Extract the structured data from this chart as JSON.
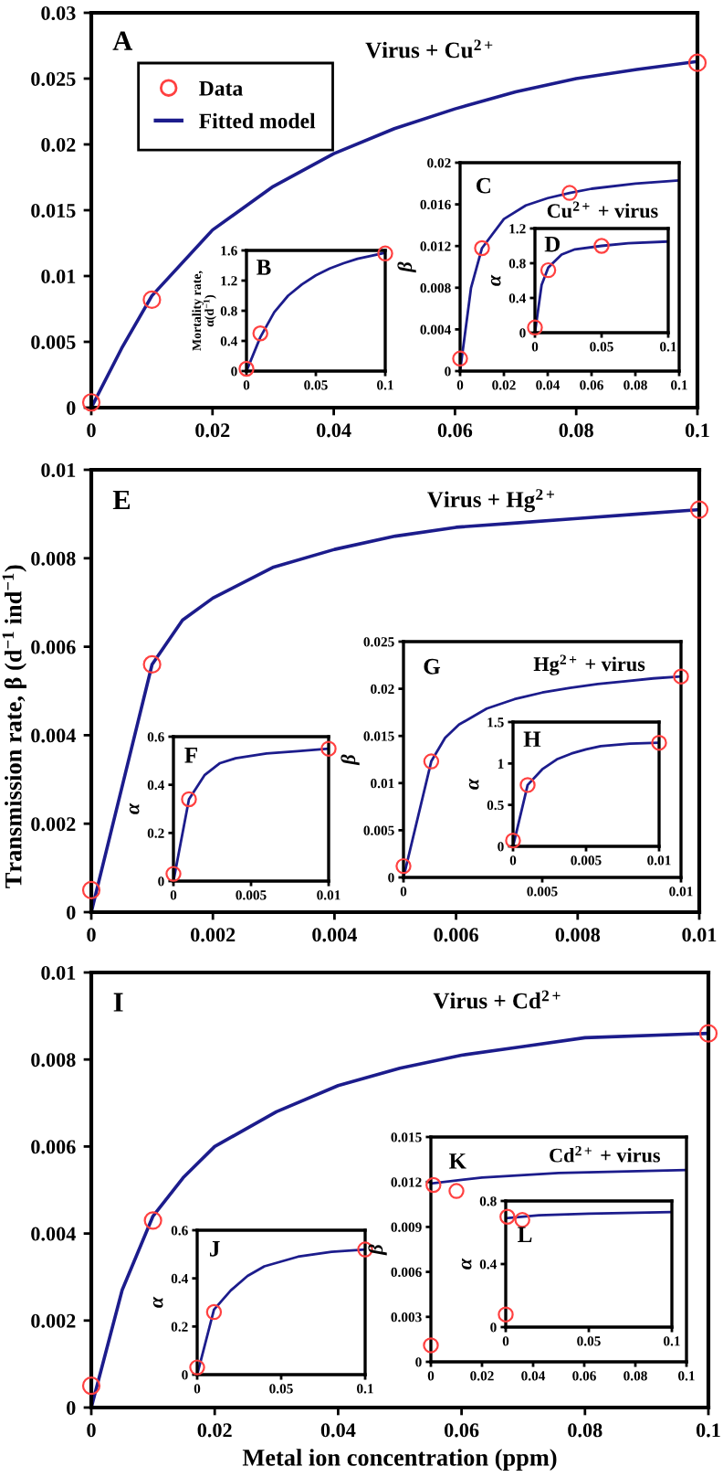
{
  "chart_data": [
    {
      "type": "line",
      "title": "A",
      "annotations": [
        "Virus + Cu$^{2+}$"
      ],
      "xlim": [
        0,
        0.1
      ],
      "ylim": [
        0,
        0.03
      ],
      "xticks": [
        0,
        0.02,
        0.04,
        0.06,
        0.08,
        0.1
      ],
      "yticks": [
        0,
        0.005,
        0.01,
        0.015,
        0.02,
        0.025,
        0.03
      ],
      "legend": "top left",
      "series": [
        {
          "type": "scatter",
          "name": "Data",
          "color": "#ff4040",
          "marker": "circle",
          "x": [
            0,
            0.01,
            0.1
          ],
          "values": [
            0.0004,
            0.0082,
            0.0262
          ]
        },
        {
          "name": "Fitted model",
          "color": "#1c1c8c",
          "x": [
            0,
            0.005,
            0.01,
            0.02,
            0.03,
            0.04,
            0.05,
            0.06,
            0.07,
            0.08,
            0.09,
            0.1
          ],
          "values": [
            0,
            0.0045,
            0.0085,
            0.0135,
            0.0168,
            0.0193,
            0.0212,
            0.0227,
            0.024,
            0.025,
            0.0257,
            0.0263
          ]
        }
      ]
    },
    {
      "type": "line",
      "title": "B",
      "ylabel": "Mortality rate,\nα(d$^{−1}$)",
      "xlim": [
        0,
        0.1
      ],
      "ylim": [
        0,
        1.6
      ],
      "xticks": [
        0,
        0.05,
        0.1
      ],
      "yticks": [
        0,
        0.4,
        0.8,
        1.2,
        1.6
      ],
      "series": [
        {
          "type": "scatter",
          "color": "#ff4040",
          "marker": "circle",
          "x": [
            0,
            0.01,
            0.1
          ],
          "values": [
            0.03,
            0.5,
            1.56
          ]
        },
        {
          "type": "line",
          "color": "#1c1c8c",
          "x": [
            0,
            0.01,
            0.02,
            0.03,
            0.04,
            0.05,
            0.06,
            0.07,
            0.08,
            0.09,
            0.1
          ],
          "values": [
            0,
            0.45,
            0.78,
            1.0,
            1.15,
            1.27,
            1.36,
            1.43,
            1.49,
            1.53,
            1.57
          ]
        }
      ]
    },
    {
      "type": "line",
      "title": "C",
      "ylabel": "β",
      "annotations": [
        "Cu$^{2+}$ + virus"
      ],
      "xlim": [
        0,
        0.1
      ],
      "ylim": [
        0,
        0.02
      ],
      "xticks": [
        0,
        0.02,
        0.04,
        0.06,
        0.08,
        0.1
      ],
      "yticks": [
        0,
        0.004,
        0.008,
        0.012,
        0.016,
        0.02
      ],
      "series": [
        {
          "type": "scatter",
          "color": "#ff4040",
          "marker": "circle",
          "x": [
            0,
            0.01,
            0.05
          ],
          "values": [
            0.0012,
            0.0118,
            0.0171
          ]
        },
        {
          "type": "line",
          "color": "#1c1c8c",
          "x": [
            0,
            0.005,
            0.01,
            0.02,
            0.03,
            0.04,
            0.05,
            0.06,
            0.08,
            0.1
          ],
          "values": [
            0,
            0.008,
            0.0118,
            0.0146,
            0.0159,
            0.0166,
            0.0171,
            0.0175,
            0.018,
            0.0183
          ]
        }
      ]
    },
    {
      "type": "line",
      "title": "D",
      "ylabel": "α",
      "xlim": [
        0,
        0.1
      ],
      "ylim": [
        0,
        1.2
      ],
      "xticks": [
        0,
        0.05,
        0.1
      ],
      "yticks": [
        0,
        0.4,
        0.8,
        1.2
      ],
      "series": [
        {
          "type": "scatter",
          "color": "#ff4040",
          "marker": "circle",
          "x": [
            0,
            0.01,
            0.05
          ],
          "values": [
            0.06,
            0.72,
            1.0
          ]
        },
        {
          "type": "line",
          "color": "#1c1c8c",
          "x": [
            0,
            0.005,
            0.01,
            0.02,
            0.03,
            0.05,
            0.07,
            0.1
          ],
          "values": [
            0,
            0.55,
            0.75,
            0.9,
            0.96,
            1.0,
            1.03,
            1.05
          ]
        }
      ]
    },
    {
      "type": "line",
      "title": "E",
      "ylabel": "Transmission rate, β (d$^{−1}$ ind$^{−1}$)",
      "annotations": [
        "Virus + Hg$^{2+}$"
      ],
      "xlim": [
        0,
        0.01
      ],
      "ylim": [
        0,
        0.01
      ],
      "xticks": [
        0,
        0.002,
        0.004,
        0.006,
        0.008,
        0.01
      ],
      "yticks": [
        0,
        0.002,
        0.004,
        0.006,
        0.008,
        0.01
      ],
      "series": [
        {
          "type": "scatter",
          "color": "#ff4040",
          "marker": "circle",
          "x": [
            0,
            0.001,
            0.01
          ],
          "values": [
            0.0005,
            0.0056,
            0.0091
          ]
        },
        {
          "type": "line",
          "color": "#1c1c8c",
          "x": [
            0,
            0.001,
            0.0015,
            0.002,
            0.003,
            0.004,
            0.005,
            0.006,
            0.007,
            0.008,
            0.009,
            0.01
          ],
          "values": [
            0,
            0.0056,
            0.0066,
            0.0071,
            0.0078,
            0.0082,
            0.0085,
            0.0087,
            0.0088,
            0.0089,
            0.009,
            0.0091
          ]
        }
      ]
    },
    {
      "type": "line",
      "title": "F",
      "ylabel": "α",
      "xlim": [
        0,
        0.01
      ],
      "ylim": [
        0,
        0.6
      ],
      "xticks": [
        0,
        0.005,
        0.01
      ],
      "yticks": [
        0,
        0.2,
        0.4,
        0.6
      ],
      "series": [
        {
          "type": "scatter",
          "color": "#ff4040",
          "marker": "circle",
          "x": [
            0,
            0.001,
            0.01
          ],
          "values": [
            0.03,
            0.34,
            0.55
          ]
        },
        {
          "type": "line",
          "color": "#1c1c8c",
          "x": [
            0,
            0.001,
            0.002,
            0.003,
            0.004,
            0.006,
            0.008,
            0.01
          ],
          "values": [
            0,
            0.34,
            0.44,
            0.49,
            0.51,
            0.53,
            0.54,
            0.55
          ]
        }
      ]
    },
    {
      "type": "line",
      "title": "G",
      "ylabel": "β",
      "annotations": [
        "Hg$^{2+}$ + virus"
      ],
      "xlim": [
        0,
        0.01
      ],
      "ylim": [
        0,
        0.025
      ],
      "xticks": [
        0,
        0.005,
        0.01
      ],
      "yticks": [
        0,
        0.005,
        0.01,
        0.015,
        0.02,
        0.025
      ],
      "series": [
        {
          "type": "scatter",
          "color": "#ff4040",
          "marker": "circle",
          "x": [
            0,
            0.001,
            0.01
          ],
          "values": [
            0.0012,
            0.0123,
            0.0213
          ]
        },
        {
          "type": "line",
          "color": "#1c1c8c",
          "x": [
            0,
            0.001,
            0.0015,
            0.002,
            0.003,
            0.004,
            0.005,
            0.006,
            0.007,
            0.008,
            0.009,
            0.01
          ],
          "values": [
            0,
            0.0123,
            0.0148,
            0.0162,
            0.0179,
            0.0189,
            0.0196,
            0.0201,
            0.0205,
            0.0208,
            0.0211,
            0.0213
          ]
        }
      ]
    },
    {
      "type": "line",
      "title": "H",
      "ylabel": "α",
      "xlim": [
        0,
        0.01
      ],
      "ylim": [
        0,
        1.5
      ],
      "xticks": [
        0,
        0.005,
        0.01
      ],
      "yticks": [
        0,
        0.5,
        1,
        1.5
      ],
      "series": [
        {
          "type": "scatter",
          "color": "#ff4040",
          "marker": "circle",
          "x": [
            0,
            0.001,
            0.01
          ],
          "values": [
            0.07,
            0.74,
            1.25
          ]
        },
        {
          "type": "line",
          "color": "#1c1c8c",
          "x": [
            0,
            0.001,
            0.002,
            0.003,
            0.004,
            0.005,
            0.006,
            0.008,
            0.01
          ],
          "values": [
            0,
            0.74,
            0.93,
            1.05,
            1.12,
            1.17,
            1.21,
            1.24,
            1.25
          ]
        }
      ]
    },
    {
      "type": "line",
      "title": "I",
      "xlabel": "Metal ion concentration (ppm)",
      "annotations": [
        "Virus + Cd$^{2+}$"
      ],
      "xlim": [
        0,
        0.1
      ],
      "ylim": [
        0,
        0.01
      ],
      "xticks": [
        0,
        0.02,
        0.04,
        0.06,
        0.08,
        0.1
      ],
      "yticks": [
        0,
        0.002,
        0.004,
        0.006,
        0.008,
        0.01
      ],
      "series": [
        {
          "type": "scatter",
          "color": "#ff4040",
          "marker": "circle",
          "x": [
            0,
            0.01,
            0.1
          ],
          "values": [
            0.0005,
            0.0043,
            0.0086
          ]
        },
        {
          "type": "line",
          "color": "#1c1c8c",
          "x": [
            0,
            0.005,
            0.01,
            0.015,
            0.02,
            0.03,
            0.04,
            0.05,
            0.06,
            0.07,
            0.08,
            0.1
          ],
          "values": [
            0,
            0.0027,
            0.0044,
            0.0053,
            0.006,
            0.0068,
            0.0074,
            0.0078,
            0.0081,
            0.0083,
            0.0085,
            0.0086
          ]
        }
      ]
    },
    {
      "type": "line",
      "title": "J",
      "ylabel": "α",
      "xlim": [
        0,
        0.1
      ],
      "ylim": [
        0,
        0.6
      ],
      "xticks": [
        0,
        0.05,
        0.1
      ],
      "yticks": [
        0,
        0.2,
        0.4,
        0.6
      ],
      "series": [
        {
          "type": "scatter",
          "color": "#ff4040",
          "marker": "circle",
          "x": [
            0,
            0.01,
            0.1
          ],
          "values": [
            0.03,
            0.26,
            0.52
          ]
        },
        {
          "type": "line",
          "color": "#1c1c8c",
          "x": [
            0,
            0.01,
            0.02,
            0.03,
            0.04,
            0.05,
            0.06,
            0.08,
            0.1
          ],
          "values": [
            0,
            0.27,
            0.35,
            0.41,
            0.45,
            0.47,
            0.49,
            0.51,
            0.52
          ]
        }
      ]
    },
    {
      "type": "line",
      "title": "K",
      "ylabel": "β",
      "annotations": [
        "Cd$^{2+}$ + virus"
      ],
      "xlim": [
        0,
        0.1
      ],
      "ylim": [
        0,
        0.015
      ],
      "xticks": [
        0,
        0.02,
        0.04,
        0.06,
        0.08,
        0.1
      ],
      "yticks": [
        0,
        0.003,
        0.006,
        0.009,
        0.012,
        0.015
      ],
      "series": [
        {
          "type": "scatter",
          "color": "#ff4040",
          "marker": "circle",
          "x": [
            0,
            0.001,
            0.01
          ],
          "values": [
            0.0011,
            0.0118,
            0.0114
          ]
        },
        {
          "type": "line",
          "color": "#1c1c8c",
          "x": [
            0,
            0.02,
            0.05,
            0.1
          ],
          "values": [
            0.0119,
            0.0123,
            0.0126,
            0.0128
          ]
        }
      ]
    },
    {
      "type": "line",
      "title": "L",
      "ylabel": "α",
      "xlim": [
        0,
        0.1
      ],
      "ylim": [
        0,
        0.8
      ],
      "xticks": [
        0,
        0.05,
        0.1
      ],
      "yticks": [
        0,
        0.4,
        0.8
      ],
      "series": [
        {
          "type": "scatter",
          "color": "#ff4040",
          "marker": "circle",
          "x": [
            0,
            0.001,
            0.01
          ],
          "values": [
            0.08,
            0.7,
            0.68
          ]
        },
        {
          "type": "line",
          "color": "#1c1c8c",
          "x": [
            0,
            0.02,
            0.05,
            0.1
          ],
          "values": [
            0.69,
            0.71,
            0.72,
            0.73
          ]
        }
      ]
    }
  ]
}
